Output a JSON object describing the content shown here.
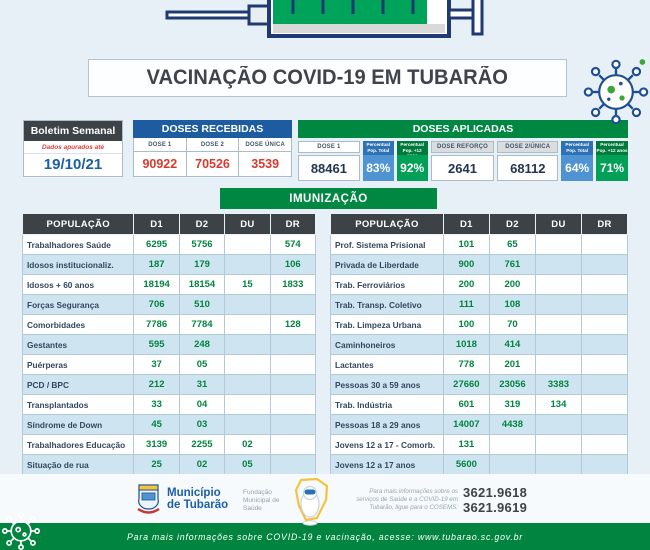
{
  "title": "VACINAÇÃO COVID-19 EM TUBARÃO",
  "boletim": {
    "header": "Boletim Semanal",
    "note": "Dados apurados até",
    "date": "19/10/21"
  },
  "doses_recebidas": {
    "title": "DOSES RECEBIDAS",
    "items": [
      {
        "label": "DOSE 1",
        "value": "90922"
      },
      {
        "label": "DOSE 2",
        "value": "70526"
      },
      {
        "label": "DOSE ÚNICA",
        "value": "3539"
      }
    ]
  },
  "doses_aplicadas": {
    "title": "DOSES APLICADAS",
    "cells": [
      {
        "type": "dose",
        "label": "DOSE 1",
        "value": "88461",
        "header_bg": "white"
      },
      {
        "type": "pct",
        "label": "Percentual Pop. Total",
        "value": "83%",
        "color": "blue"
      },
      {
        "type": "pct",
        "label": "Percentual Pop. +12 anos",
        "value": "92%",
        "color": "green"
      },
      {
        "type": "dose",
        "label": "DOSE REFORÇO",
        "value": "2641",
        "header_bg": "gray"
      },
      {
        "type": "dose",
        "label": "DOSE 2/ÚNICA",
        "value": "68112",
        "header_bg": "gray"
      },
      {
        "type": "pct",
        "label": "Percentual Pop. Total",
        "value": "64%",
        "color": "blue"
      },
      {
        "type": "pct",
        "label": "Percentual Pop. +12 anos",
        "value": "71%",
        "color": "green"
      }
    ]
  },
  "imunizacao": {
    "title": "IMUNIZAÇÃO",
    "columns": [
      "POPULAÇÃO",
      "D1",
      "D2",
      "DU",
      "DR"
    ],
    "left_rows": [
      [
        "Trabalhadores Saúde",
        "6295",
        "5756",
        "",
        "574"
      ],
      [
        "Idosos institucionaliz.",
        "187",
        "179",
        "",
        "106"
      ],
      [
        "Idosos + 60 anos",
        "18194",
        "18154",
        "15",
        "1833"
      ],
      [
        "Forças Segurança",
        "706",
        "510",
        "",
        ""
      ],
      [
        "Comorbidades",
        "7786",
        "7784",
        "",
        "128"
      ],
      [
        "Gestantes",
        "595",
        "248",
        "",
        ""
      ],
      [
        "Puérperas",
        "37",
        "05",
        "",
        ""
      ],
      [
        "PCD / BPC",
        "212",
        "31",
        "",
        ""
      ],
      [
        "Transplantados",
        "33",
        "04",
        "",
        ""
      ],
      [
        "Síndrome de Down",
        "45",
        "03",
        "",
        ""
      ],
      [
        "Trabalhadores Educação",
        "3139",
        "2255",
        "02",
        ""
      ],
      [
        "Situação de rua",
        "25",
        "02",
        "05",
        ""
      ]
    ],
    "right_rows": [
      [
        "Prof. Sistema Prisional",
        "101",
        "65",
        "",
        ""
      ],
      [
        "Privada de Liberdade",
        "900",
        "761",
        "",
        ""
      ],
      [
        "Trab. Ferroviários",
        "200",
        "200",
        "",
        ""
      ],
      [
        "Trab. Transp. Coletivo",
        "111",
        "108",
        "",
        ""
      ],
      [
        "Trab. Limpeza Urbana",
        "100",
        "70",
        "",
        ""
      ],
      [
        "Caminhoneiros",
        "1018",
        "414",
        "",
        ""
      ],
      [
        "Lactantes",
        "778",
        "201",
        "",
        ""
      ],
      [
        "Pessoas 30 a 59 anos",
        "27660",
        "23056",
        "3383",
        ""
      ],
      [
        "Trab. Indústria",
        "601",
        "319",
        "134",
        ""
      ],
      [
        "Pessoas 18 a 29 anos",
        "14007",
        "4438",
        "",
        ""
      ],
      [
        "Jovens 12 a 17 - Comorb.",
        "131",
        "",
        "",
        ""
      ],
      [
        "Jovens 12 a 17 anos",
        "5600",
        "",
        "",
        ""
      ]
    ]
  },
  "org": {
    "name_line1": "Município",
    "name_line2": "de Tubarão",
    "foundation_lines": [
      "Fundação",
      "Municipal de",
      "Saúde"
    ]
  },
  "contact": {
    "info_lines": [
      "Para mais informações sobre os",
      "serviços de Saúde e a COVID-19 em",
      "Tubarão, ligue para o COSEMS:"
    ],
    "phones": [
      "3621.9618",
      "3621.9619"
    ]
  },
  "footer": {
    "text": "Para mais informações sobre COVID-19 e vacinação, acesse: www.tubarao.sc.gov.br"
  },
  "colors": {
    "green": "#008843",
    "blue_header": "#1d5ca0",
    "charcoal": "#3d4247",
    "red_value": "#d93a30",
    "date_blue": "#1b5fa8",
    "table_value_green": "#00843f",
    "pct_blue": "#4f93d2",
    "pct_green": "#00a157",
    "row_blue": "#cfe4f1",
    "background": "#e7f0f6"
  }
}
